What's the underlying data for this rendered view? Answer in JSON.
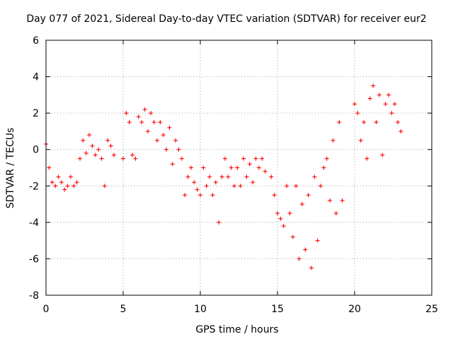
{
  "chart_data": {
    "type": "scatter",
    "title": "Day 077 of 2021, Sidereal Day-to-day VTEC variation (SDTVAR) for receiver eur2",
    "xlabel": "GPS time / hours",
    "ylabel": "SDTVAR / TECUs",
    "xlim": [
      0,
      25
    ],
    "ylim": [
      -8,
      6
    ],
    "xticks": [
      0,
      5,
      10,
      15,
      20,
      25
    ],
    "yticks": [
      -8,
      -6,
      -4,
      -2,
      0,
      2,
      4,
      6
    ],
    "grid": true,
    "marker": "+",
    "marker_color": "#ff0000",
    "series": [
      {
        "name": "eur2",
        "x": [
          0.0,
          0.2,
          0.4,
          0.6,
          0.8,
          1.0,
          1.2,
          1.4,
          1.6,
          1.8,
          2.0,
          2.2,
          2.4,
          2.6,
          2.8,
          3.0,
          3.2,
          3.4,
          3.6,
          3.8,
          4.0,
          4.2,
          4.4,
          5.0,
          5.2,
          5.4,
          5.6,
          5.8,
          6.0,
          6.2,
          6.4,
          6.6,
          6.8,
          7.0,
          7.2,
          7.4,
          7.6,
          7.8,
          8.0,
          8.2,
          8.4,
          8.6,
          8.8,
          9.0,
          9.2,
          9.4,
          9.6,
          9.8,
          10.0,
          10.2,
          10.4,
          10.6,
          10.8,
          11.0,
          11.2,
          11.4,
          11.6,
          11.8,
          12.0,
          12.2,
          12.4,
          12.6,
          12.8,
          13.0,
          13.2,
          13.4,
          13.6,
          13.8,
          14.0,
          14.2,
          14.6,
          14.8,
          15.0,
          15.2,
          15.4,
          15.6,
          15.8,
          16.0,
          16.2,
          16.4,
          16.6,
          16.8,
          17.0,
          17.2,
          17.4,
          17.6,
          17.8,
          18.0,
          18.2,
          18.4,
          18.6,
          18.8,
          19.0,
          19.2,
          20.0,
          20.2,
          20.4,
          20.6,
          20.8,
          21.0,
          21.2,
          21.4,
          21.6,
          21.8,
          22.0,
          22.2,
          22.4,
          22.6,
          22.8,
          23.0
        ],
        "y": [
          0.3,
          -1.0,
          -1.8,
          -2.0,
          -1.5,
          -1.8,
          -2.2,
          -2.0,
          -1.5,
          -2.0,
          -1.8,
          -0.5,
          0.5,
          -0.2,
          0.8,
          0.2,
          -0.3,
          0.0,
          -0.5,
          -2.0,
          0.5,
          0.2,
          -0.3,
          -0.5,
          2.0,
          1.5,
          -0.3,
          -0.5,
          1.8,
          1.5,
          2.2,
          1.0,
          2.0,
          1.5,
          0.5,
          1.5,
          0.8,
          0.0,
          1.2,
          -0.8,
          0.5,
          0.0,
          -0.5,
          -2.5,
          -1.5,
          -1.0,
          -1.8,
          -2.2,
          -2.5,
          -1.0,
          -2.0,
          -1.5,
          -2.5,
          -1.8,
          -4.0,
          -1.5,
          -0.5,
          -1.5,
          -1.0,
          -2.0,
          -1.0,
          -2.0,
          -0.5,
          -1.5,
          -0.8,
          -1.8,
          -0.5,
          -1.0,
          -0.5,
          -1.2,
          -1.5,
          -2.5,
          -3.5,
          -3.8,
          -4.2,
          -2.0,
          -3.5,
          -4.8,
          -2.0,
          -6.0,
          -3.0,
          -5.5,
          -2.5,
          -6.5,
          -1.5,
          -5.0,
          -2.0,
          -1.0,
          -0.5,
          -2.8,
          0.5,
          -3.5,
          1.5,
          -2.8,
          2.5,
          2.0,
          0.5,
          1.5,
          -0.5,
          2.8,
          3.5,
          1.5,
          3.0,
          -0.3,
          2.5,
          3.0,
          2.0,
          2.5,
          1.5,
          1.0
        ]
      }
    ]
  }
}
